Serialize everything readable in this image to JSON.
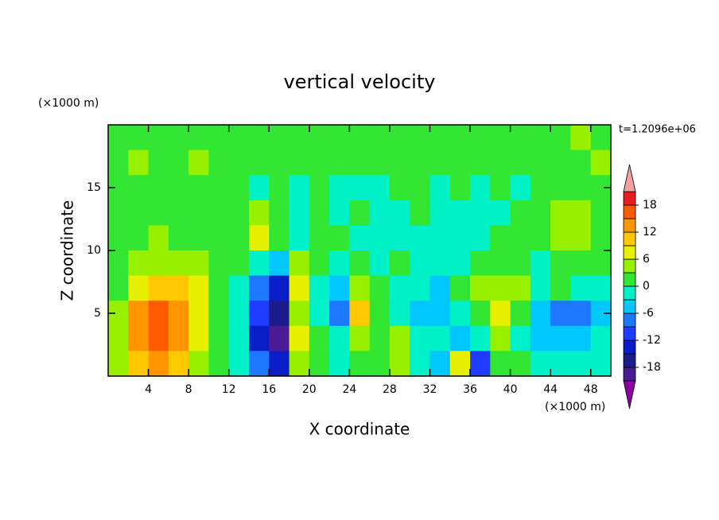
{
  "chart_data": {
    "type": "contour",
    "title": "vertical velocity",
    "xlabel": "X coordinate",
    "ylabel": "Z coordinate",
    "x_units": "(×1000 m)",
    "y_units": "(×1000 m)",
    "time_label": "t=1.2096e+06",
    "xlim": [
      0,
      50
    ],
    "ylim": [
      0,
      20
    ],
    "xticks": [
      4,
      8,
      12,
      16,
      20,
      24,
      28,
      32,
      36,
      40,
      44,
      48
    ],
    "yticks": [
      5,
      10,
      15
    ],
    "x": [
      1,
      3,
      5,
      7,
      9,
      11,
      13,
      15,
      17,
      19,
      21,
      23,
      25,
      27,
      29,
      31,
      33,
      35,
      37,
      39,
      41,
      43,
      45,
      47,
      49
    ],
    "y": [
      19,
      17,
      15,
      13,
      11,
      9,
      7,
      5,
      3,
      1
    ],
    "z": [
      [
        2,
        2,
        2,
        2,
        2,
        1,
        1,
        1,
        1,
        2,
        2,
        2,
        2,
        2,
        1,
        1,
        1,
        2,
        2,
        1,
        2,
        2,
        2,
        3,
        2
      ],
      [
        2,
        3,
        2,
        2,
        3,
        2,
        1,
        1,
        1,
        0,
        1,
        1,
        0,
        0,
        1,
        1,
        0,
        1,
        2,
        1,
        1,
        1,
        2,
        2,
        3
      ],
      [
        1,
        1,
        0,
        1,
        1,
        0,
        0,
        -1,
        0,
        -1,
        0,
        -1,
        -2,
        -1,
        0,
        0,
        -1,
        0,
        -1,
        0,
        -1,
        0,
        1,
        1,
        1
      ],
      [
        1,
        0,
        1,
        0,
        1,
        0,
        1,
        5,
        0,
        -1,
        1,
        -1,
        0,
        -2,
        -1,
        0,
        -1,
        -2,
        -1,
        -1,
        0,
        1,
        4,
        5,
        2
      ],
      [
        1,
        2,
        3,
        2,
        2,
        1,
        2,
        7,
        1,
        -1,
        0,
        2,
        -1,
        -1,
        -2,
        -1,
        -2,
        -3,
        -1,
        0,
        1,
        2,
        5,
        3,
        1
      ],
      [
        2,
        3,
        4,
        5,
        3,
        2,
        0,
        -2,
        -6,
        4,
        0,
        -2,
        1,
        -2,
        0,
        -1,
        -2,
        -1,
        2,
        2,
        1,
        -1,
        0,
        1,
        0
      ],
      [
        2,
        6,
        10,
        10,
        7,
        2,
        -2,
        -8,
        -14,
        8,
        -1,
        -6,
        4,
        0,
        -2,
        -3,
        -4,
        0,
        3,
        5,
        3,
        -2,
        0,
        -3,
        -1
      ],
      [
        4,
        12,
        15,
        13,
        8,
        1,
        -3,
        -12,
        -16,
        3,
        -2,
        -8,
        9,
        2,
        -3,
        -4,
        -5,
        -2,
        2,
        8,
        1,
        -5,
        -8,
        -9,
        -4
      ],
      [
        5,
        14,
        17,
        14,
        7,
        1,
        -2,
        -13,
        -19,
        7,
        0,
        -3,
        4,
        1,
        5,
        -1,
        -3,
        -6,
        -1,
        3,
        -1,
        -4,
        -6,
        -5,
        -3
      ],
      [
        3,
        10,
        12,
        10,
        5,
        1,
        -2,
        -8,
        -14,
        5,
        1,
        -2,
        2,
        0,
        5,
        -1,
        -4,
        7,
        -10,
        1,
        0,
        -3,
        -3,
        -2,
        -2
      ]
    ],
    "levels": [
      -21,
      -18,
      -15,
      -12,
      -9,
      -6,
      -3,
      0,
      3,
      6,
      9,
      12,
      15,
      18,
      21
    ],
    "colors": [
      "#4b1b96",
      "#1c1c8c",
      "#0a1ec8",
      "#1e3cff",
      "#1e78ff",
      "#00c8ff",
      "#00f0c8",
      "#32e632",
      "#96f000",
      "#e6f000",
      "#ffc800",
      "#ff9600",
      "#ff5a00",
      "#e61e1e"
    ],
    "over_color": "#f5a0a0",
    "under_color": "#8c00a0",
    "colorbar_ticks": [
      -18,
      -12,
      -6,
      0,
      6,
      12,
      18
    ]
  }
}
